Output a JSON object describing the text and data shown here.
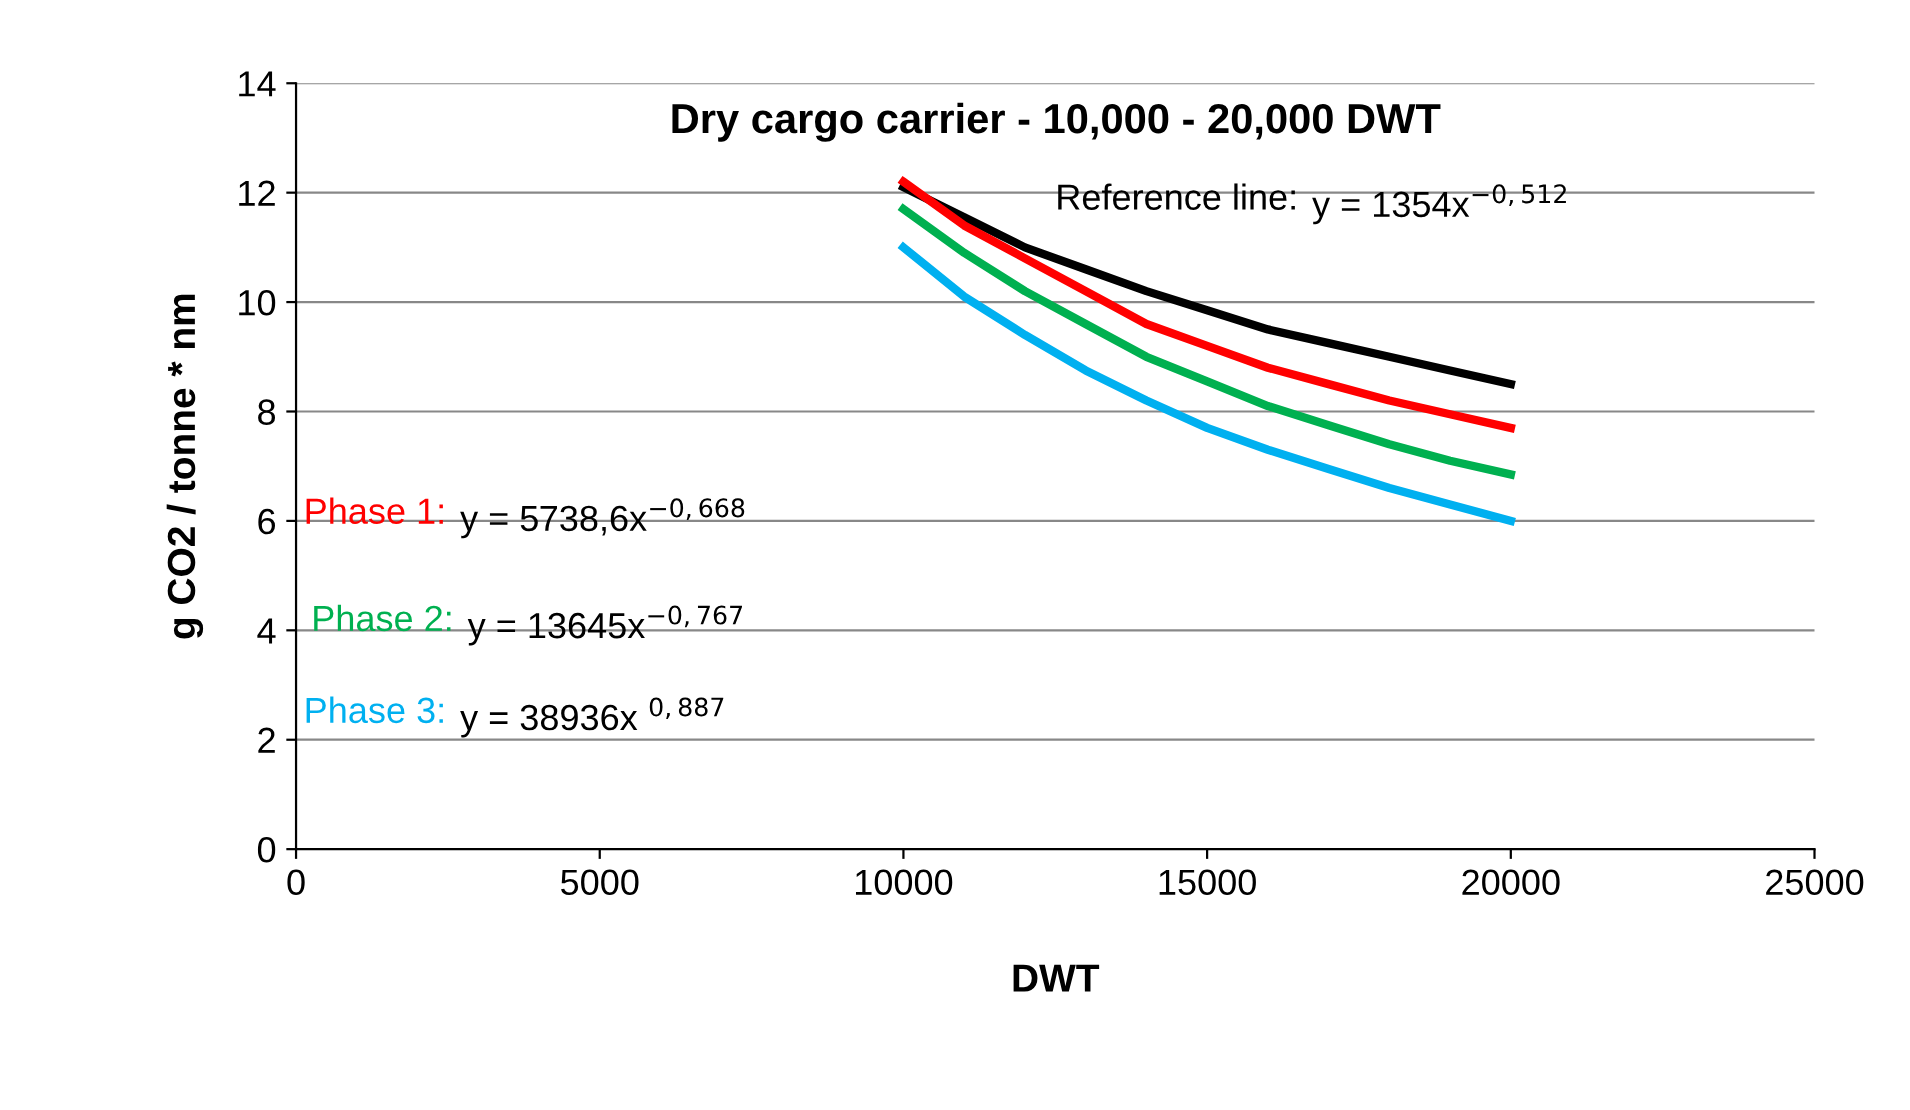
{
  "chart_data": {
    "type": "line",
    "title": "Dry cargo carrier - 10,000 - 20,000 DWT",
    "xlabel": "DWT",
    "ylabel": "g CO2 / tonne * nm",
    "x": [
      10000,
      11000,
      12000,
      13000,
      14000,
      15000,
      16000,
      17000,
      18000,
      19000,
      20000
    ],
    "series": [
      {
        "name": "Reference line:",
        "color": "#000000",
        "values": [
          12.1,
          11.55,
          11.0,
          10.6,
          10.2,
          9.85,
          9.5,
          9.25,
          9.0,
          8.75,
          8.5
        ]
      },
      {
        "name": "Phase 1:",
        "color": "#ff0000",
        "values": [
          12.2,
          11.4,
          10.8,
          10.2,
          9.6,
          9.2,
          8.8,
          8.5,
          8.2,
          7.95,
          7.7
        ]
      },
      {
        "name": "Phase 2:",
        "color": "#00b050",
        "values": [
          11.7,
          10.9,
          10.2,
          9.6,
          9.0,
          8.55,
          8.1,
          7.75,
          7.4,
          7.1,
          6.85
        ]
      },
      {
        "name": "Phase 3:",
        "color": "#00b0f0",
        "values": [
          11.0,
          10.1,
          9.4,
          8.75,
          8.2,
          7.7,
          7.3,
          6.95,
          6.6,
          6.3,
          6.0
        ]
      }
    ],
    "annotations": [
      "y = 1354x$^{−0,512}$",
      "y = 5738,6x$^{−0,668}$",
      "y = 13645x$^{−0,767}$",
      "y = 38936x $^{0,887}$"
    ],
    "xlim": [
      0,
      25000
    ],
    "xticks": [
      0,
      5000,
      10000,
      15000,
      20000,
      25000
    ],
    "ylim": [
      0,
      14
    ],
    "yticks": [
      0,
      2,
      4,
      6,
      8,
      10,
      12,
      14
    ],
    "grid": "y",
    "legend": false,
    "marker": "none",
    "line_style": "solid"
  }
}
